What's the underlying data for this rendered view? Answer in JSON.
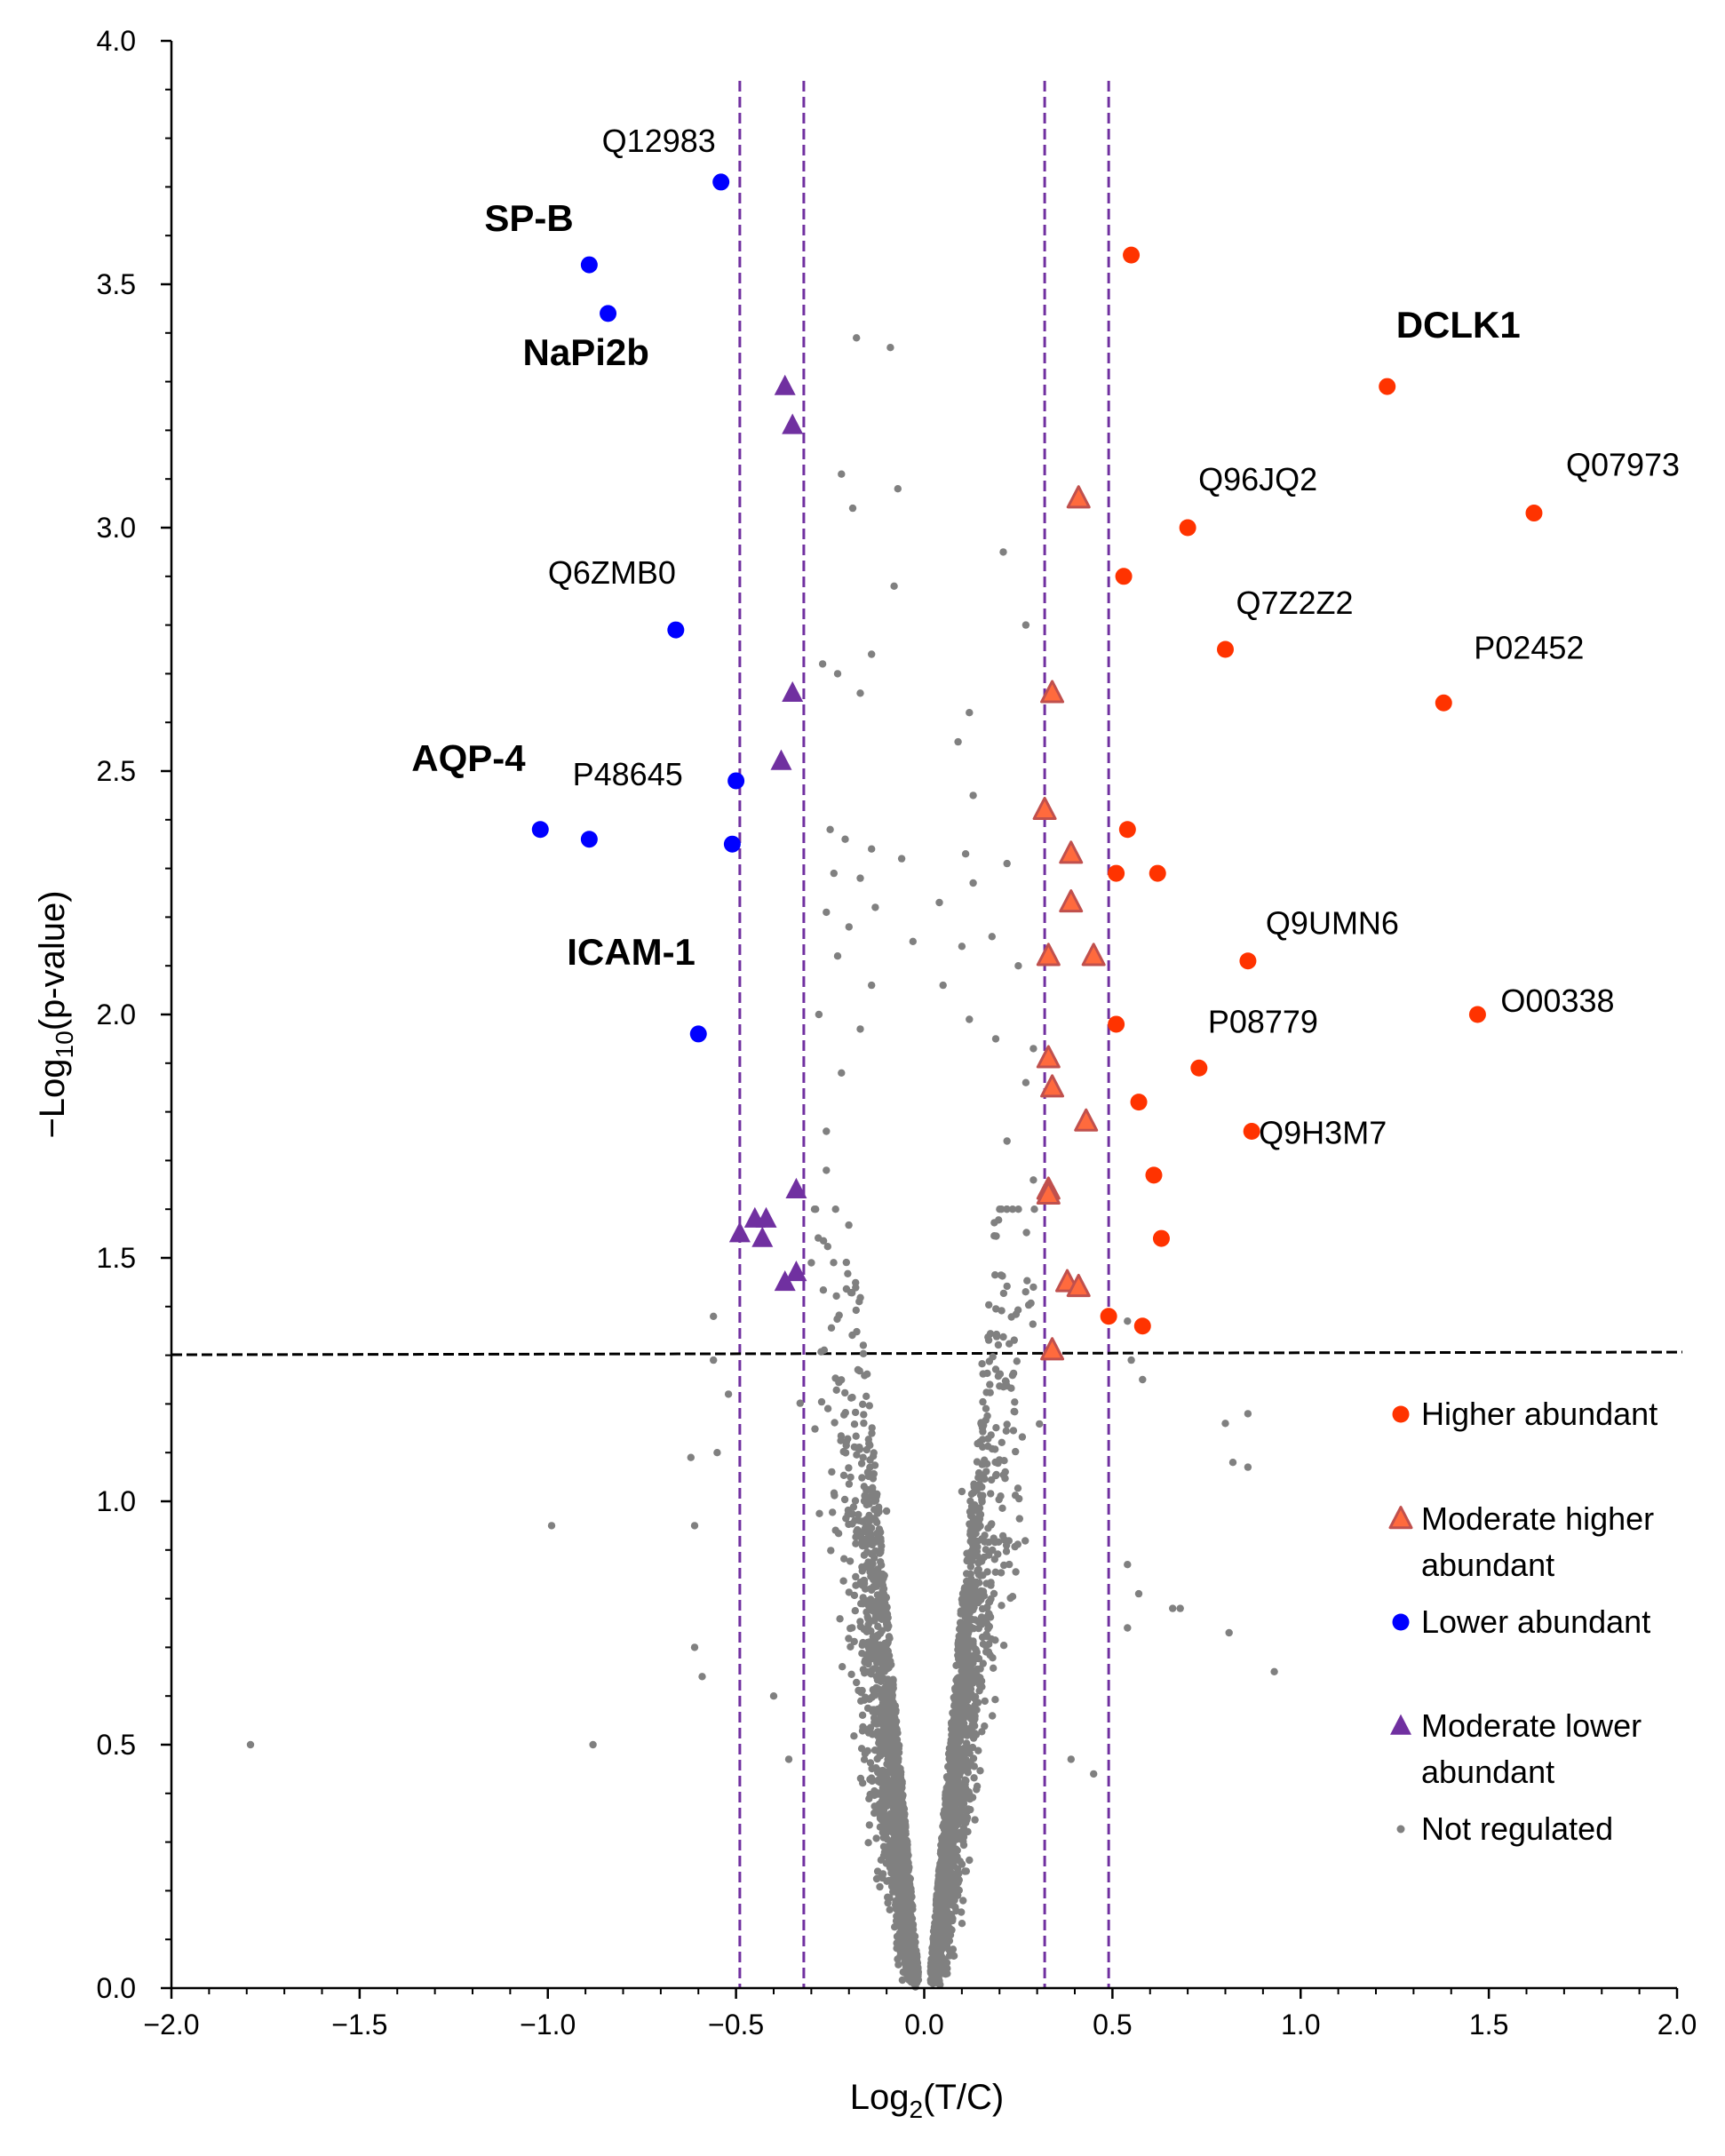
{
  "chart_data": {
    "type": "scatter",
    "title": "",
    "xlabel": "Log",
    "xlabel_sub": "2",
    "xlabel_suffix": "(T/C)",
    "ylabel": "−Log",
    "ylabel_sub": "10",
    "ylabel_suffix": "(p-value)",
    "xlim": [
      -2.0,
      2.0
    ],
    "ylim": [
      0.0,
      4.0
    ],
    "x_ticks": [
      "−2.0",
      "−1.5",
      "−1.0",
      "−0.5",
      "0.0",
      "0.5",
      "1.0",
      "1.5",
      "2.0"
    ],
    "y_ticks": [
      "0.0",
      "0.5",
      "1.0",
      "1.5",
      "2.0",
      "2.5",
      "3.0",
      "3.5",
      "4.0"
    ],
    "grid": false,
    "threshold_lines": {
      "horizontal_y": 1.301,
      "vertical_x": [
        -0.49,
        -0.32,
        0.32,
        0.49
      ]
    },
    "legend_position": "right",
    "colors": {
      "higher": "#ff3300",
      "moderate_higher_fill": "#ff6a3d",
      "moderate_higher_stroke": "#c0504d",
      "lower": "#0000ff",
      "moderate_lower": "#7030a0",
      "not_regulated": "#808080",
      "threshold_vertical": "#7030a0",
      "threshold_horizontal": "#000000"
    },
    "series": [
      {
        "name": "Higher abundant",
        "legend_lines": [
          "Higher abundant"
        ],
        "marker": "circle",
        "points": [
          [
            0.55,
            3.56
          ],
          [
            1.23,
            3.29
          ],
          [
            0.7,
            3.0
          ],
          [
            1.62,
            3.03
          ],
          [
            0.53,
            2.9
          ],
          [
            0.8,
            2.75
          ],
          [
            1.38,
            2.64
          ],
          [
            0.54,
            2.38
          ],
          [
            0.51,
            2.29
          ],
          [
            0.62,
            2.29
          ],
          [
            0.86,
            2.11
          ],
          [
            1.47,
            2.0
          ],
          [
            0.51,
            1.98
          ],
          [
            0.73,
            1.89
          ],
          [
            0.57,
            1.82
          ],
          [
            0.87,
            1.76
          ],
          [
            0.61,
            1.67
          ],
          [
            0.63,
            1.54
          ],
          [
            0.49,
            1.38
          ],
          [
            0.58,
            1.36
          ]
        ]
      },
      {
        "name": "Moderate higher abundant",
        "legend_lines": [
          "Moderate higher",
          "abundant"
        ],
        "marker": "triangle-outlined",
        "points": [
          [
            0.41,
            3.06
          ],
          [
            0.34,
            2.66
          ],
          [
            0.32,
            2.42
          ],
          [
            0.39,
            2.33
          ],
          [
            0.39,
            2.23
          ],
          [
            0.33,
            2.12
          ],
          [
            0.45,
            2.12
          ],
          [
            0.33,
            1.91
          ],
          [
            0.34,
            1.85
          ],
          [
            0.43,
            1.78
          ],
          [
            0.33,
            1.64
          ],
          [
            0.33,
            1.63
          ],
          [
            0.38,
            1.45
          ],
          [
            0.41,
            1.44
          ],
          [
            0.34,
            1.31
          ]
        ]
      },
      {
        "name": "Lower abundant",
        "legend_lines": [
          "Lower abundant"
        ],
        "marker": "circle",
        "points": [
          [
            -0.54,
            3.71
          ],
          [
            -0.89,
            3.54
          ],
          [
            -0.84,
            3.44
          ],
          [
            -0.66,
            2.79
          ],
          [
            -0.5,
            2.48
          ],
          [
            -1.02,
            2.38
          ],
          [
            -0.89,
            2.36
          ],
          [
            -0.51,
            2.35
          ],
          [
            -0.6,
            1.96
          ]
        ]
      },
      {
        "name": "Moderate lower abundant",
        "legend_lines": [
          "Moderate lower",
          "abundant"
        ],
        "marker": "triangle",
        "points": [
          [
            -0.37,
            3.29
          ],
          [
            -0.35,
            3.21
          ],
          [
            -0.35,
            2.66
          ],
          [
            -0.38,
            2.52
          ],
          [
            -0.34,
            1.64
          ],
          [
            -0.45,
            1.58
          ],
          [
            -0.42,
            1.58
          ],
          [
            -0.49,
            1.55
          ],
          [
            -0.43,
            1.54
          ],
          [
            -0.34,
            1.47
          ],
          [
            -0.37,
            1.45
          ]
        ]
      },
      {
        "name": "Not regulated",
        "legend_lines": [
          "Not regulated"
        ],
        "marker": "small-dot",
        "points": [
          [
            -0.18,
            3.39
          ],
          [
            -0.09,
            3.37
          ],
          [
            -0.22,
            3.11
          ],
          [
            -0.07,
            3.08
          ],
          [
            -0.19,
            3.04
          ],
          [
            0.21,
            2.95
          ],
          [
            -0.08,
            2.88
          ],
          [
            0.27,
            2.8
          ],
          [
            -0.14,
            2.74
          ],
          [
            -0.27,
            2.72
          ],
          [
            -0.23,
            2.7
          ],
          [
            -0.17,
            2.66
          ],
          [
            0.12,
            2.62
          ],
          [
            0.09,
            2.56
          ],
          [
            0.13,
            2.45
          ],
          [
            -0.25,
            2.38
          ],
          [
            -0.21,
            2.36
          ],
          [
            -0.14,
            2.34
          ],
          [
            0.11,
            2.33
          ],
          [
            -0.06,
            2.32
          ],
          [
            0.22,
            2.31
          ],
          [
            -0.24,
            2.29
          ],
          [
            -0.17,
            2.28
          ],
          [
            0.13,
            2.27
          ],
          [
            -0.13,
            2.22
          ],
          [
            0.04,
            2.23
          ],
          [
            -0.26,
            2.21
          ],
          [
            -0.2,
            2.18
          ],
          [
            0.18,
            2.16
          ],
          [
            -0.03,
            2.15
          ],
          [
            0.1,
            2.14
          ],
          [
            -0.23,
            2.12
          ],
          [
            0.25,
            2.1
          ],
          [
            -0.14,
            2.06
          ],
          [
            0.05,
            2.06
          ],
          [
            -0.28,
            2.0
          ],
          [
            0.12,
            1.99
          ],
          [
            -0.17,
            1.97
          ],
          [
            0.19,
            1.95
          ],
          [
            0.29,
            1.93
          ],
          [
            -0.22,
            1.88
          ],
          [
            0.27,
            1.86
          ],
          [
            -0.26,
            1.76
          ],
          [
            0.22,
            1.74
          ],
          [
            -0.26,
            1.68
          ],
          [
            0.29,
            1.66
          ],
          [
            -0.3,
            1.49
          ],
          [
            0.29,
            1.44
          ],
          [
            -0.56,
            1.38
          ],
          [
            0.54,
            1.37
          ],
          [
            -0.56,
            1.29
          ],
          [
            0.55,
            1.29
          ],
          [
            -0.52,
            1.22
          ],
          [
            0.58,
            1.25
          ],
          [
            0.8,
            1.16
          ],
          [
            0.86,
            1.18
          ],
          [
            -0.55,
            1.1
          ],
          [
            0.82,
            1.08
          ],
          [
            0.86,
            1.07
          ],
          [
            -0.62,
            1.09
          ],
          [
            -0.99,
            0.95
          ],
          [
            -0.61,
            0.95
          ],
          [
            0.54,
            0.87
          ],
          [
            0.57,
            0.81
          ],
          [
            0.66,
            0.78
          ],
          [
            0.68,
            0.78
          ],
          [
            0.81,
            0.73
          ],
          [
            0.54,
            0.74
          ],
          [
            -0.61,
            0.7
          ],
          [
            0.93,
            0.65
          ],
          [
            -0.59,
            0.64
          ],
          [
            -0.4,
            0.6
          ],
          [
            -1.79,
            0.5
          ],
          [
            -0.88,
            0.5
          ],
          [
            -0.36,
            0.47
          ],
          [
            0.39,
            0.47
          ],
          [
            0.45,
            0.44
          ],
          [
            -0.1,
            0.98
          ],
          [
            0.1,
            1.02
          ],
          [
            -0.12,
            0.85
          ],
          [
            0.12,
            0.82
          ],
          [
            -0.15,
            0.71
          ],
          [
            0.14,
            0.69
          ],
          [
            -0.05,
            0.3
          ],
          [
            0.05,
            0.28
          ]
        ]
      }
    ],
    "background_cloud": {
      "series": "Not regulated",
      "count": 3200,
      "seed": 7
    },
    "annotations": [
      {
        "text": "Q12983",
        "x": -0.54,
        "y": 3.71,
        "bold": false
      },
      {
        "text": "SP-B",
        "x": -0.89,
        "y": 3.54,
        "bold": true
      },
      {
        "text": "NaPi2b",
        "x": -0.84,
        "y": 3.44,
        "bold": true
      },
      {
        "text": "Q6ZMB0",
        "x": -0.66,
        "y": 2.79,
        "bold": false
      },
      {
        "text": "AQP-4",
        "x": -1.02,
        "y": 2.38,
        "bold": true
      },
      {
        "text": "P48645",
        "x": -0.5,
        "y": 2.48,
        "bold": false
      },
      {
        "text": "ICAM-1",
        "x": -0.6,
        "y": 1.96,
        "bold": true
      },
      {
        "text": "DCLK1",
        "x": 1.23,
        "y": 3.29,
        "bold": true
      },
      {
        "text": "Q96JQ2",
        "x": 0.7,
        "y": 3.0,
        "bold": false
      },
      {
        "text": "Q07973",
        "x": 1.62,
        "y": 3.03,
        "bold": false
      },
      {
        "text": "Q7Z2Z2",
        "x": 0.8,
        "y": 2.75,
        "bold": false
      },
      {
        "text": "P02452",
        "x": 1.38,
        "y": 2.64,
        "bold": false
      },
      {
        "text": "Q9UMN6",
        "x": 0.86,
        "y": 2.11,
        "bold": false
      },
      {
        "text": "O00338",
        "x": 1.47,
        "y": 2.0,
        "bold": false
      },
      {
        "text": "P08779",
        "x": 0.73,
        "y": 1.89,
        "bold": false
      },
      {
        "text": "Q9H3M7",
        "x": 0.87,
        "y": 1.76,
        "bold": false
      }
    ]
  }
}
